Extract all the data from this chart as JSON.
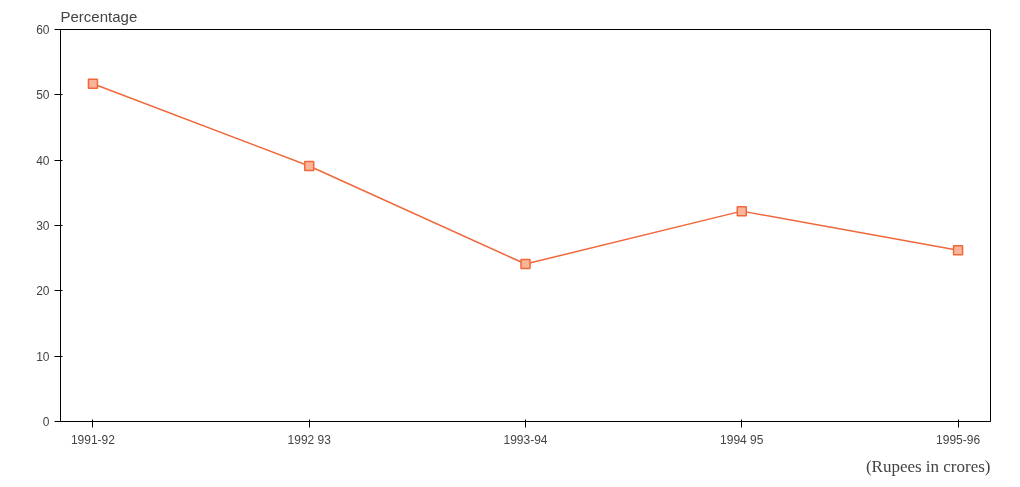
{
  "chart_data": {
    "type": "line",
    "ylabel": "Percentage",
    "categories": [
      "1991-92",
      "1992 93",
      "1993-94",
      "1994 95",
      "1995-96"
    ],
    "series": [
      {
        "color": "#f0673a",
        "values": [
          51.7,
          39.1,
          24.1,
          32.2,
          26.2
        ]
      }
    ],
    "ylim": [
      0,
      60
    ],
    "yticks": [
      0,
      10,
      20,
      30,
      40,
      50,
      60
    ],
    "grid": false,
    "marker": "square",
    "line_style": "solid",
    "annotations": [
      "(Rupees in crores)"
    ]
  }
}
